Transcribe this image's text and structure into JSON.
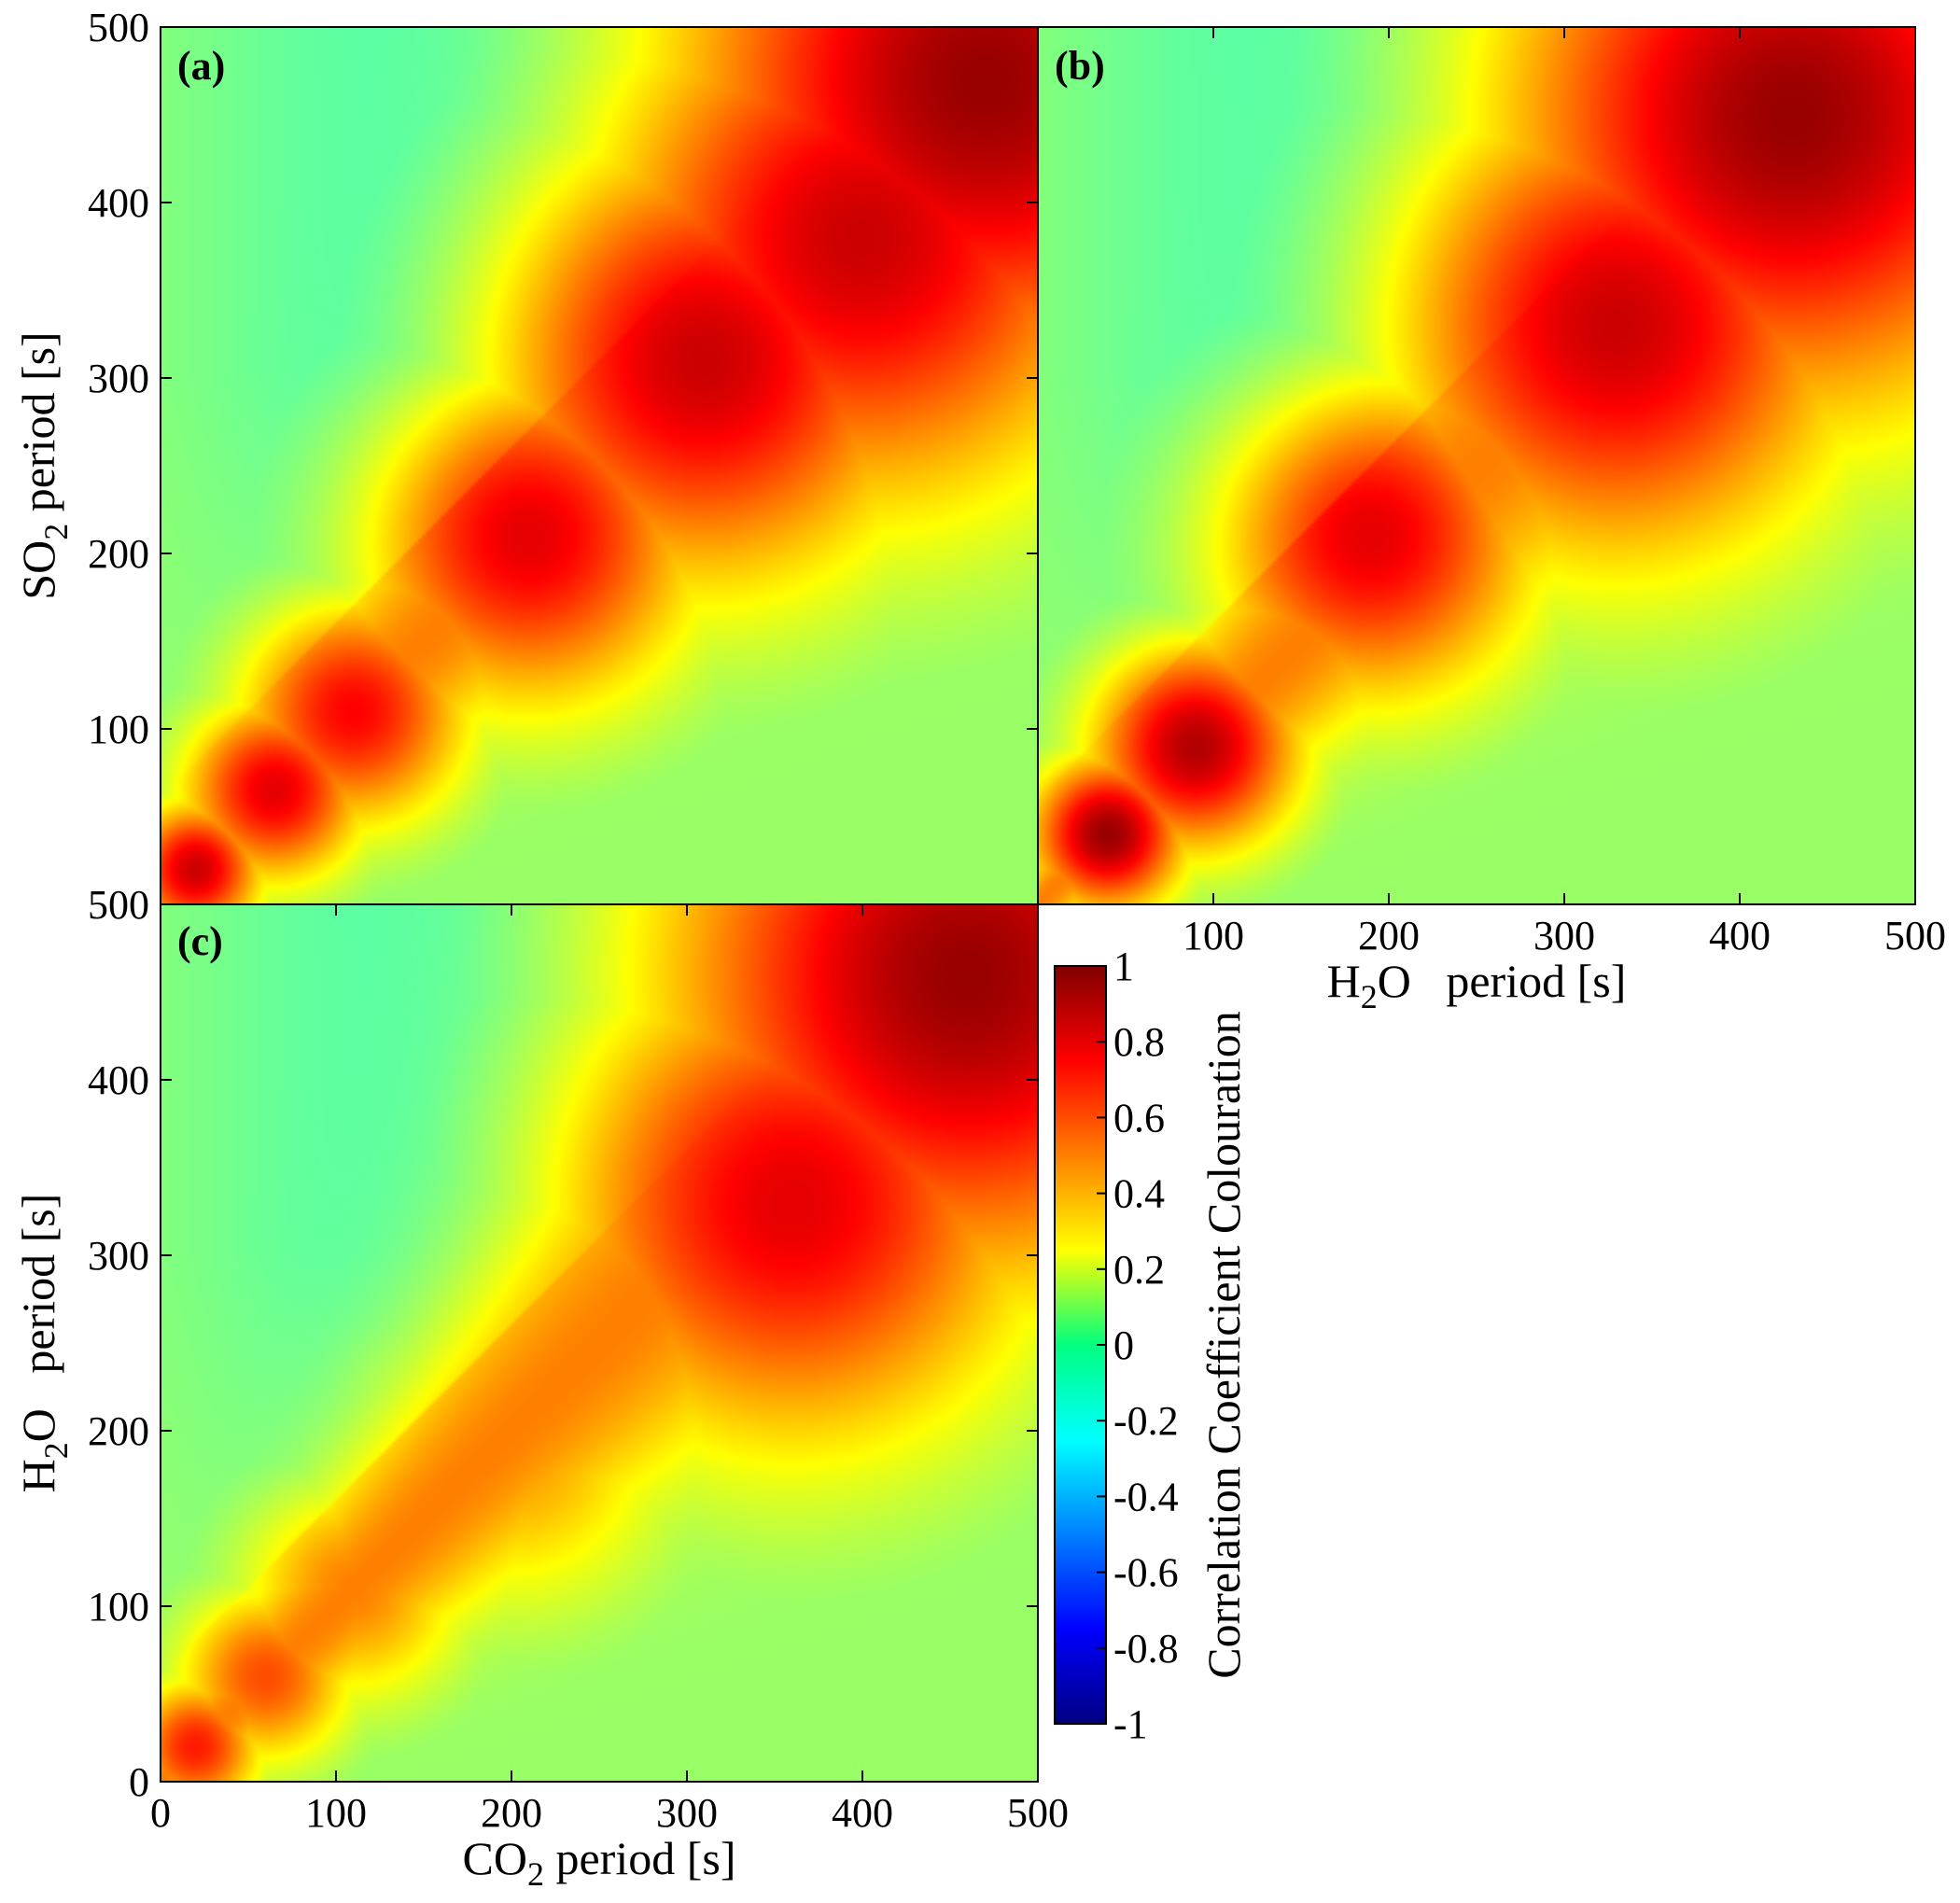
{
  "chart_data": [
    {
      "type": "heatmap",
      "panel_label": "(a)",
      "xlabel": "",
      "ylabel_main": "SO",
      "ylabel_sub": "2",
      "ylabel_rest": " period [s]",
      "xlim": [
        0,
        500
      ],
      "ylim": [
        0,
        500
      ],
      "y_ticks": [
        "500",
        "400",
        "300",
        "200",
        "100"
      ],
      "y_tick_values": [
        500,
        400,
        300,
        200,
        100
      ],
      "x_ticks": [],
      "grid": false,
      "blobs": [
        {
          "x": 20,
          "y": 20,
          "peak": 0.85
        },
        {
          "x": 65,
          "y": 65,
          "peak": 0.8
        },
        {
          "x": 110,
          "y": 110,
          "peak": 0.75
        },
        {
          "x": 210,
          "y": 210,
          "peak": 0.8
        },
        {
          "x": 310,
          "y": 310,
          "peak": 0.85
        },
        {
          "x": 400,
          "y": 380,
          "peak": 0.85
        },
        {
          "x": 470,
          "y": 470,
          "peak": 0.95
        }
      ]
    },
    {
      "type": "heatmap",
      "panel_label": "(b)",
      "xlabel_main": "H",
      "xlabel_sub": "2",
      "xlabel_rest": "O   period [s]",
      "xlim": [
        0,
        500
      ],
      "ylim": [
        0,
        500
      ],
      "x_ticks": [
        "100",
        "200",
        "300",
        "400",
        "500"
      ],
      "x_tick_values": [
        100,
        200,
        300,
        400,
        500
      ],
      "y_ticks": [],
      "grid": false,
      "blobs": [
        {
          "x": 40,
          "y": 40,
          "peak": 0.95
        },
        {
          "x": 90,
          "y": 90,
          "peak": 0.9
        },
        {
          "x": 190,
          "y": 210,
          "peak": 0.8
        },
        {
          "x": 330,
          "y": 330,
          "peak": 0.85
        },
        {
          "x": 430,
          "y": 450,
          "peak": 0.95
        }
      ]
    },
    {
      "type": "heatmap",
      "panel_label": "(c)",
      "xlabel_main": "CO",
      "xlabel_sub": "2",
      "xlabel_rest": " period [s]",
      "ylabel_main": "H",
      "ylabel_sub": "2",
      "ylabel_rest": "O   period [s]",
      "xlim": [
        0,
        500
      ],
      "ylim": [
        0,
        500
      ],
      "x_ticks": [
        "0",
        "100",
        "200",
        "300",
        "400",
        "500"
      ],
      "x_tick_values": [
        0,
        100,
        200,
        300,
        400,
        500
      ],
      "y_ticks": [
        "500",
        "400",
        "300",
        "200",
        "100",
        "0"
      ],
      "y_tick_values": [
        500,
        400,
        300,
        200,
        100,
        0
      ],
      "grid": false,
      "blobs": [
        {
          "x": 20,
          "y": 20,
          "peak": 0.7
        },
        {
          "x": 60,
          "y": 60,
          "peak": 0.6
        },
        {
          "x": 110,
          "y": 110,
          "peak": 0.5
        },
        {
          "x": 200,
          "y": 190,
          "peak": 0.45
        },
        {
          "x": 360,
          "y": 330,
          "peak": 0.8
        },
        {
          "x": 460,
          "y": 460,
          "peak": 0.95
        }
      ]
    }
  ],
  "colorbar": {
    "label": "Correlation Coefficient Colouration",
    "ticks": [
      "1",
      "0.8",
      "0.6",
      "0.4",
      "0.2",
      "0",
      "-0.2",
      "-0.4",
      "-0.6",
      "-0.8",
      "-1"
    ],
    "tick_values": [
      1,
      0.8,
      0.6,
      0.4,
      0.2,
      0,
      -0.2,
      -0.4,
      -0.6,
      -0.8,
      -1
    ],
    "range": [
      -1,
      1
    ],
    "colormap": "jet"
  }
}
